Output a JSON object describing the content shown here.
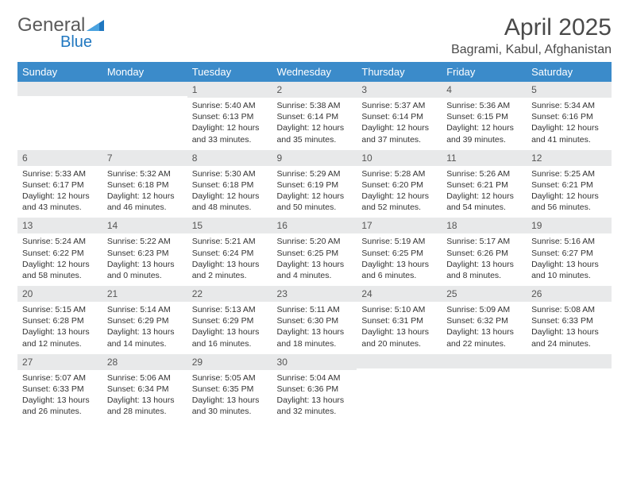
{
  "logo": {
    "text_a": "General",
    "text_b": "Blue"
  },
  "title": "April 2025",
  "location": "Bagrami, Kabul, Afghanistan",
  "colors": {
    "header_bg": "#3b8bca",
    "header_text": "#ffffff",
    "row_divider": "#3b6fa0",
    "daynum_bg": "#e8e9ea",
    "text": "#333333",
    "title_text": "#4a4a4a",
    "logo_gray": "#5a5a5a",
    "logo_blue": "#1f77c0"
  },
  "weekdays": [
    "Sunday",
    "Monday",
    "Tuesday",
    "Wednesday",
    "Thursday",
    "Friday",
    "Saturday"
  ],
  "weeks": [
    [
      {
        "n": "",
        "t": ""
      },
      {
        "n": "",
        "t": ""
      },
      {
        "n": "1",
        "t": "Sunrise: 5:40 AM\nSunset: 6:13 PM\nDaylight: 12 hours and 33 minutes."
      },
      {
        "n": "2",
        "t": "Sunrise: 5:38 AM\nSunset: 6:14 PM\nDaylight: 12 hours and 35 minutes."
      },
      {
        "n": "3",
        "t": "Sunrise: 5:37 AM\nSunset: 6:14 PM\nDaylight: 12 hours and 37 minutes."
      },
      {
        "n": "4",
        "t": "Sunrise: 5:36 AM\nSunset: 6:15 PM\nDaylight: 12 hours and 39 minutes."
      },
      {
        "n": "5",
        "t": "Sunrise: 5:34 AM\nSunset: 6:16 PM\nDaylight: 12 hours and 41 minutes."
      }
    ],
    [
      {
        "n": "6",
        "t": "Sunrise: 5:33 AM\nSunset: 6:17 PM\nDaylight: 12 hours and 43 minutes."
      },
      {
        "n": "7",
        "t": "Sunrise: 5:32 AM\nSunset: 6:18 PM\nDaylight: 12 hours and 46 minutes."
      },
      {
        "n": "8",
        "t": "Sunrise: 5:30 AM\nSunset: 6:18 PM\nDaylight: 12 hours and 48 minutes."
      },
      {
        "n": "9",
        "t": "Sunrise: 5:29 AM\nSunset: 6:19 PM\nDaylight: 12 hours and 50 minutes."
      },
      {
        "n": "10",
        "t": "Sunrise: 5:28 AM\nSunset: 6:20 PM\nDaylight: 12 hours and 52 minutes."
      },
      {
        "n": "11",
        "t": "Sunrise: 5:26 AM\nSunset: 6:21 PM\nDaylight: 12 hours and 54 minutes."
      },
      {
        "n": "12",
        "t": "Sunrise: 5:25 AM\nSunset: 6:21 PM\nDaylight: 12 hours and 56 minutes."
      }
    ],
    [
      {
        "n": "13",
        "t": "Sunrise: 5:24 AM\nSunset: 6:22 PM\nDaylight: 12 hours and 58 minutes."
      },
      {
        "n": "14",
        "t": "Sunrise: 5:22 AM\nSunset: 6:23 PM\nDaylight: 13 hours and 0 minutes."
      },
      {
        "n": "15",
        "t": "Sunrise: 5:21 AM\nSunset: 6:24 PM\nDaylight: 13 hours and 2 minutes."
      },
      {
        "n": "16",
        "t": "Sunrise: 5:20 AM\nSunset: 6:25 PM\nDaylight: 13 hours and 4 minutes."
      },
      {
        "n": "17",
        "t": "Sunrise: 5:19 AM\nSunset: 6:25 PM\nDaylight: 13 hours and 6 minutes."
      },
      {
        "n": "18",
        "t": "Sunrise: 5:17 AM\nSunset: 6:26 PM\nDaylight: 13 hours and 8 minutes."
      },
      {
        "n": "19",
        "t": "Sunrise: 5:16 AM\nSunset: 6:27 PM\nDaylight: 13 hours and 10 minutes."
      }
    ],
    [
      {
        "n": "20",
        "t": "Sunrise: 5:15 AM\nSunset: 6:28 PM\nDaylight: 13 hours and 12 minutes."
      },
      {
        "n": "21",
        "t": "Sunrise: 5:14 AM\nSunset: 6:29 PM\nDaylight: 13 hours and 14 minutes."
      },
      {
        "n": "22",
        "t": "Sunrise: 5:13 AM\nSunset: 6:29 PM\nDaylight: 13 hours and 16 minutes."
      },
      {
        "n": "23",
        "t": "Sunrise: 5:11 AM\nSunset: 6:30 PM\nDaylight: 13 hours and 18 minutes."
      },
      {
        "n": "24",
        "t": "Sunrise: 5:10 AM\nSunset: 6:31 PM\nDaylight: 13 hours and 20 minutes."
      },
      {
        "n": "25",
        "t": "Sunrise: 5:09 AM\nSunset: 6:32 PM\nDaylight: 13 hours and 22 minutes."
      },
      {
        "n": "26",
        "t": "Sunrise: 5:08 AM\nSunset: 6:33 PM\nDaylight: 13 hours and 24 minutes."
      }
    ],
    [
      {
        "n": "27",
        "t": "Sunrise: 5:07 AM\nSunset: 6:33 PM\nDaylight: 13 hours and 26 minutes."
      },
      {
        "n": "28",
        "t": "Sunrise: 5:06 AM\nSunset: 6:34 PM\nDaylight: 13 hours and 28 minutes."
      },
      {
        "n": "29",
        "t": "Sunrise: 5:05 AM\nSunset: 6:35 PM\nDaylight: 13 hours and 30 minutes."
      },
      {
        "n": "30",
        "t": "Sunrise: 5:04 AM\nSunset: 6:36 PM\nDaylight: 13 hours and 32 minutes."
      },
      {
        "n": "",
        "t": ""
      },
      {
        "n": "",
        "t": ""
      },
      {
        "n": "",
        "t": ""
      }
    ]
  ]
}
